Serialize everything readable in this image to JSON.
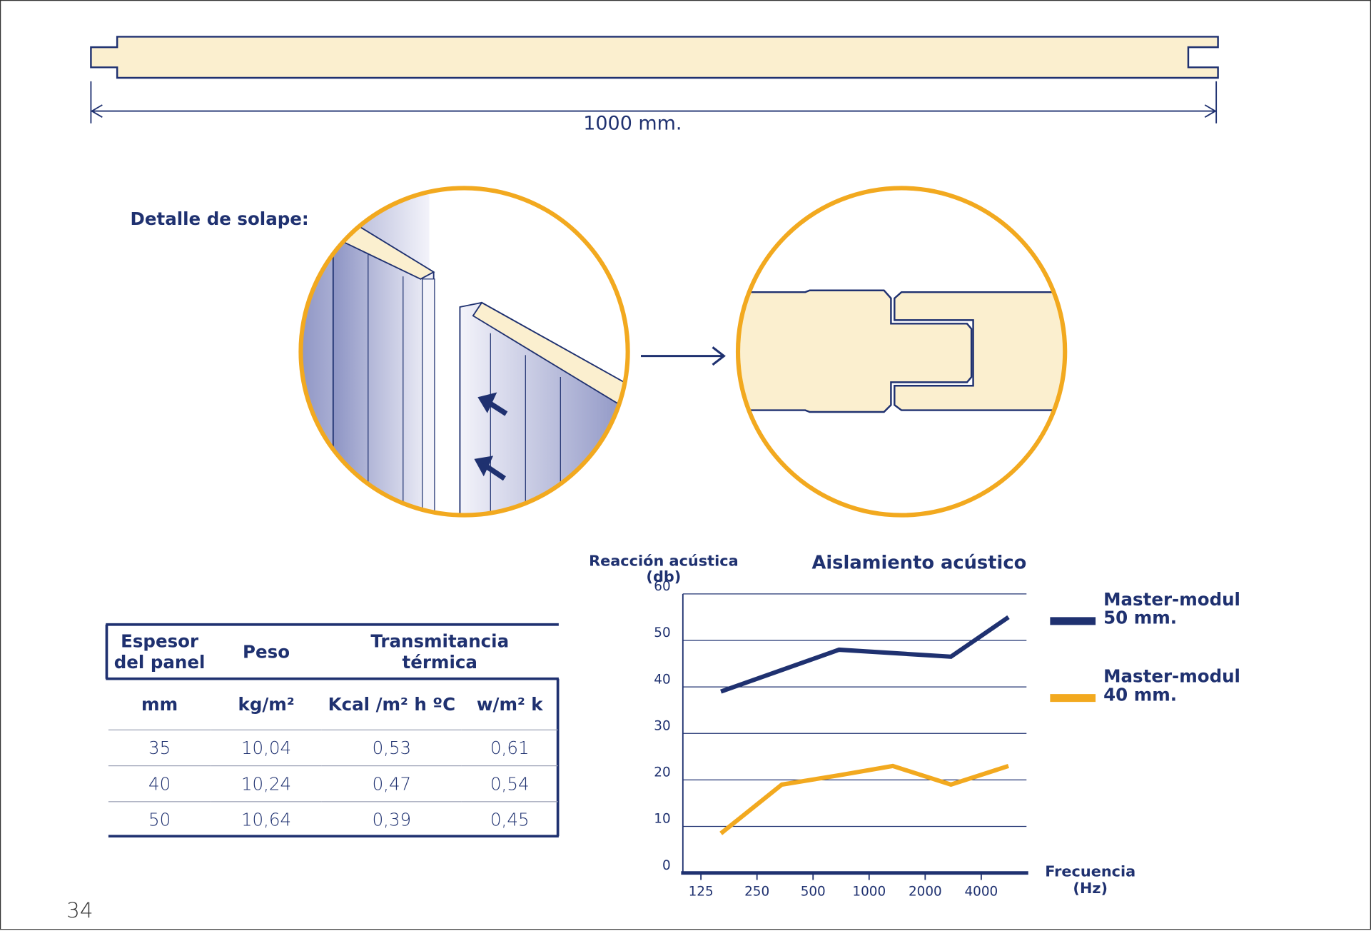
{
  "panel": {
    "width_label": "1000 mm."
  },
  "overlap": {
    "title": "Detalle de solape:"
  },
  "table": {
    "header": [
      "Espesor del panel",
      "Peso",
      "Transmitancia térmica"
    ],
    "units": [
      "mm",
      "kg/m²",
      "Kcal /m² h ºC",
      "w/m² k"
    ],
    "rows": [
      [
        "35",
        "10,04",
        "0,53",
        "0,61"
      ],
      [
        "40",
        "10,24",
        "0,47",
        "0,54"
      ],
      [
        "50",
        "10,64",
        "0,39",
        "0,45"
      ]
    ]
  },
  "chart_data": {
    "type": "line",
    "title": "Aislamiento acústico",
    "y_label": "Reacción acústica (db)",
    "x_label": "Frecuencia (Hz)",
    "xscale": "log",
    "xlim": [
      100,
      7000
    ],
    "xticks": [
      125,
      250,
      500,
      1000,
      2000,
      4000
    ],
    "ylim": [
      0,
      60
    ],
    "yticks": [
      0,
      10,
      20,
      30,
      40,
      50,
      60
    ],
    "grid": true,
    "series": [
      {
        "name": "Master-modul 50 mm.",
        "color": "#1f3170",
        "x": [
          160,
          690,
          2750,
          5600
        ],
        "values": [
          39,
          48,
          46.5,
          55
        ]
      },
      {
        "name": "Master-modul 40 mm.",
        "color": "#f2a91f",
        "x": [
          160,
          340,
          690,
          1340,
          2750,
          5600
        ],
        "values": [
          8.5,
          19,
          21,
          23,
          19,
          23
        ]
      }
    ]
  },
  "page_number": "34"
}
